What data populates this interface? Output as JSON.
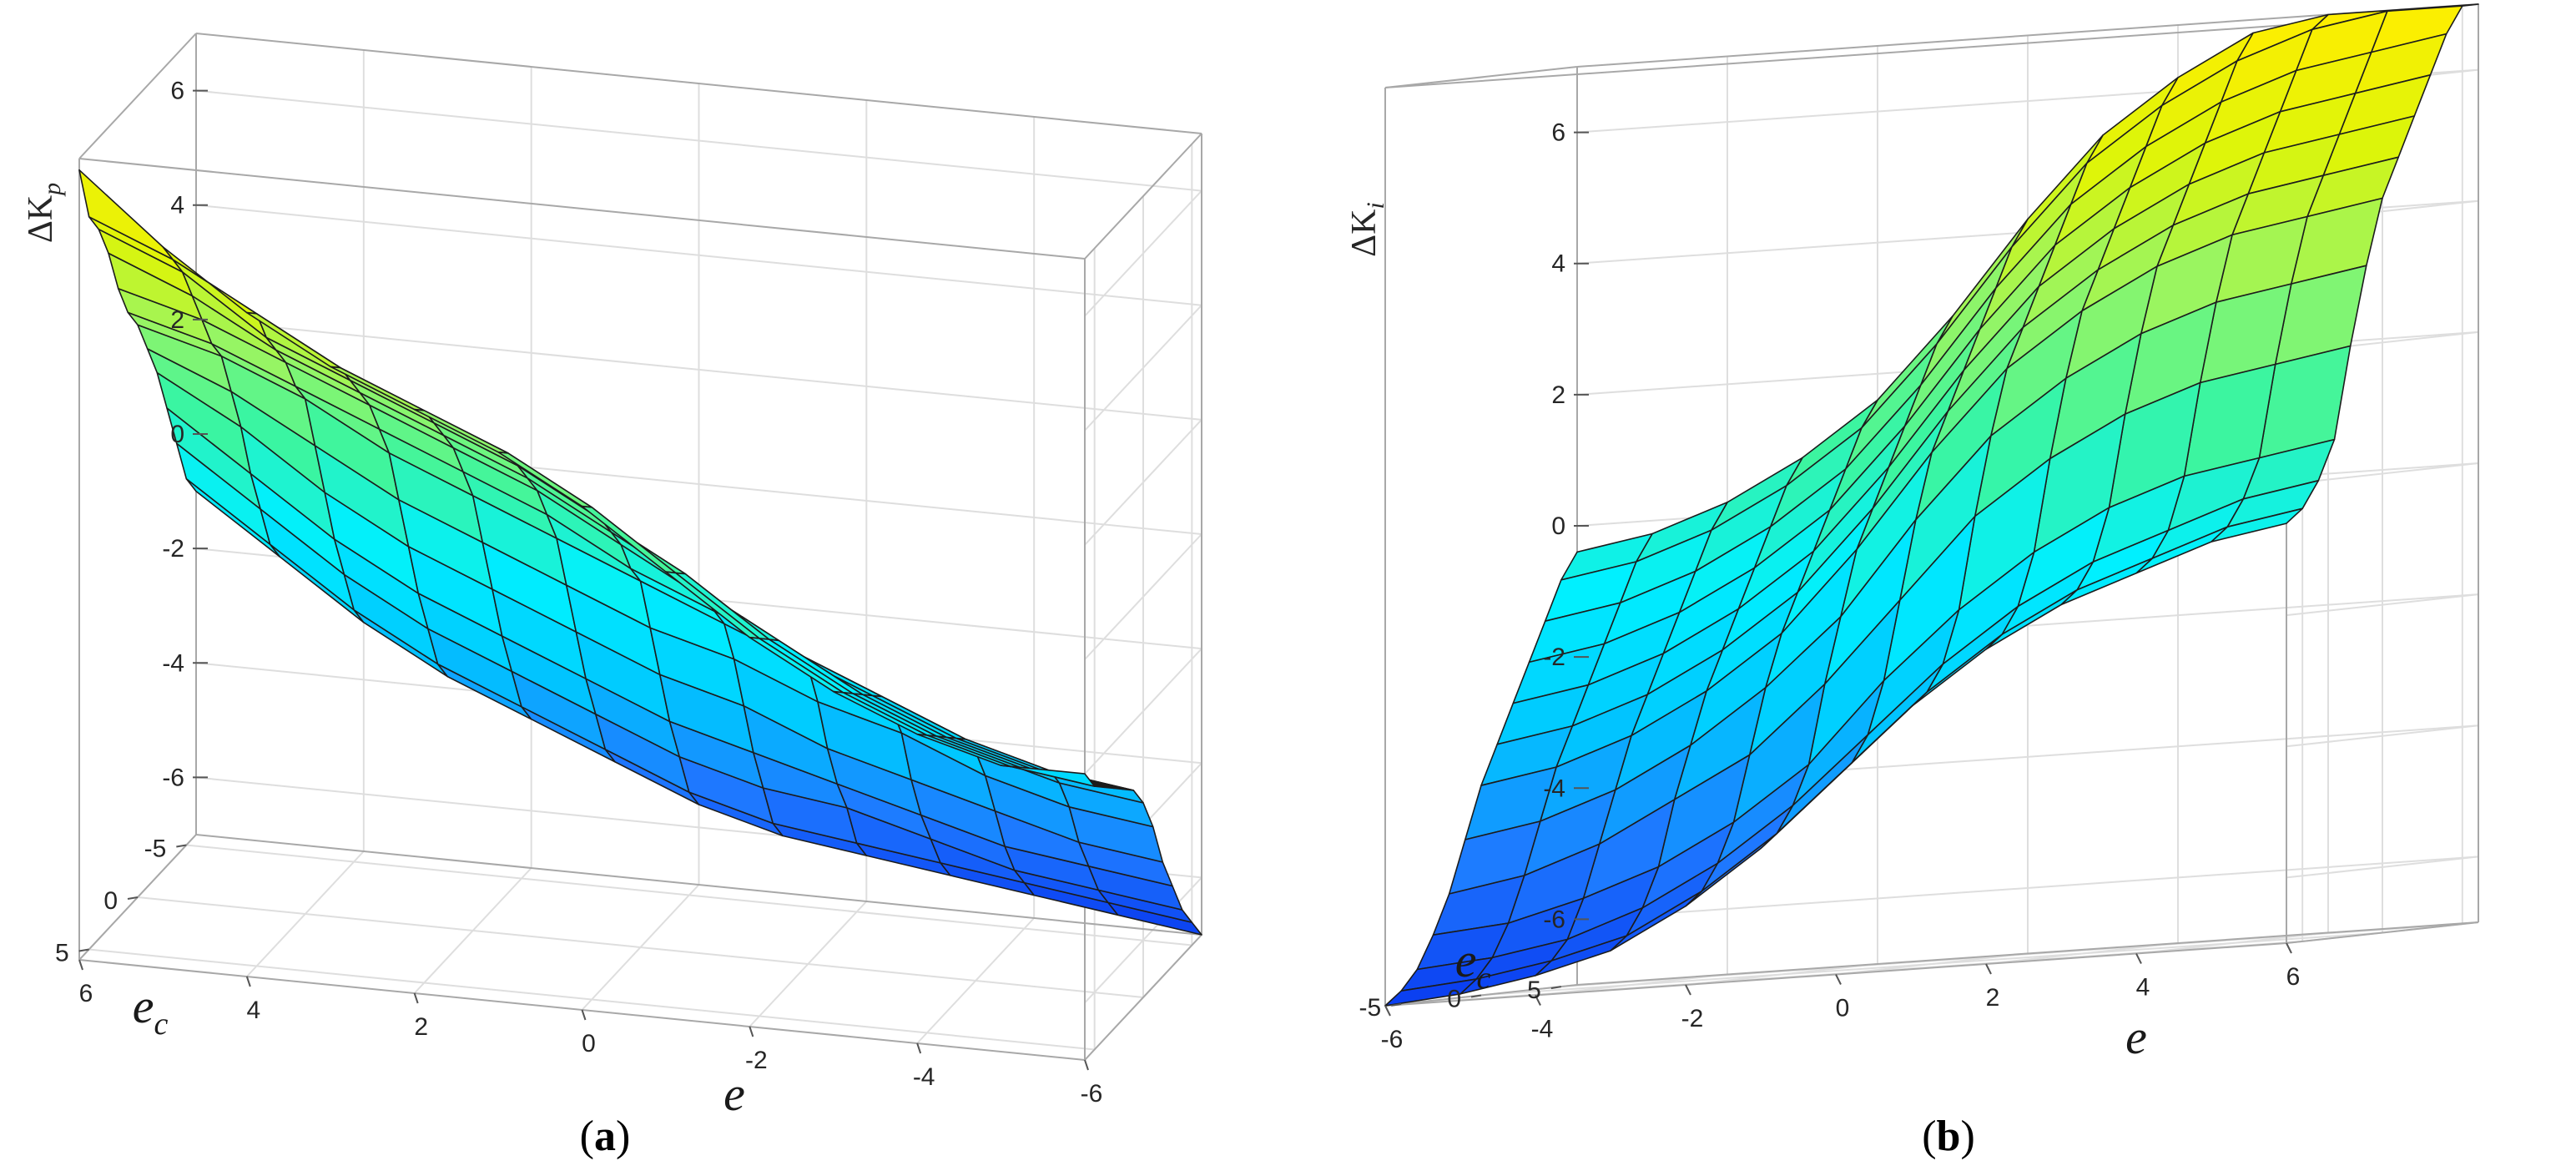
{
  "captions": {
    "a": "a",
    "b": "b"
  },
  "colormap": [
    "#0a3cf0",
    "#1e78ff",
    "#00c8ff",
    "#00f0ff",
    "#3cf5a0",
    "#96f564",
    "#dcf50a",
    "#ffee00"
  ],
  "chart_data": [
    {
      "type": "surface",
      "panel": "a",
      "zlabel": "ΔK_p",
      "xlabel": "e",
      "ylabel": "e_c",
      "zlim": [
        -7,
        7
      ],
      "xlim": [
        -6,
        6
      ],
      "ylim": [
        -6,
        6
      ],
      "grid": true,
      "z_ticks": [
        6,
        4,
        2,
        0,
        -2,
        -4,
        -6
      ],
      "x_ticks": [
        6,
        4,
        2,
        0,
        -2,
        -4,
        -6
      ],
      "y_ticks": [
        -5,
        0,
        5
      ],
      "x": [
        -6,
        -5,
        -4,
        -3,
        -2,
        -1,
        0,
        1,
        2,
        3,
        4,
        5,
        6
      ],
      "y": [
        -6,
        -5,
        -4,
        -3,
        -2,
        -1,
        0,
        1,
        2,
        3,
        4,
        5,
        6
      ],
      "z": [
        [
          -7.0,
          -6.8,
          -6.6,
          -6.4,
          -6.2,
          -6.0,
          -5.6,
          -5.0,
          -4.4,
          -3.8,
          -3.0,
          -2.0,
          -1.0
        ],
        [
          -6.6,
          -6.4,
          -6.2,
          -6.0,
          -5.8,
          -5.6,
          -5.2,
          -4.6,
          -4.0,
          -3.4,
          -2.6,
          -1.6,
          -0.6
        ],
        [
          -6.2,
          -6.0,
          -5.8,
          -5.4,
          -5.0,
          -4.8,
          -4.4,
          -3.8,
          -3.2,
          -2.6,
          -1.8,
          -0.8,
          0.2
        ],
        [
          -5.6,
          -5.4,
          -5.2,
          -4.8,
          -4.4,
          -4.0,
          -3.6,
          -3.0,
          -2.4,
          -1.8,
          -1.0,
          0.0,
          1.0
        ],
        [
          -5.0,
          -4.8,
          -4.4,
          -4.0,
          -3.6,
          -3.0,
          -2.6,
          -2.0,
          -1.4,
          -0.8,
          0.0,
          1.0,
          1.8
        ],
        [
          -4.2,
          -4.0,
          -3.6,
          -3.0,
          -2.6,
          -2.0,
          -1.6,
          -1.0,
          -0.4,
          0.2,
          1.0,
          1.8,
          2.4
        ],
        [
          -3.6,
          -3.4,
          -3.0,
          -2.4,
          -1.8,
          -1.2,
          -0.6,
          0.0,
          0.6,
          1.2,
          2.0,
          2.6,
          3.0
        ],
        [
          -3.2,
          -3.0,
          -2.6,
          -2.0,
          -1.4,
          -0.8,
          -0.2,
          0.6,
          1.2,
          1.8,
          2.4,
          3.0,
          3.4
        ],
        [
          -3.0,
          -2.8,
          -2.4,
          -1.8,
          -1.2,
          -0.4,
          0.4,
          1.2,
          1.8,
          2.4,
          3.0,
          3.6,
          4.0
        ],
        [
          -2.8,
          -2.6,
          -2.2,
          -1.6,
          -0.8,
          0.0,
          0.8,
          1.6,
          2.2,
          2.8,
          3.4,
          4.2,
          4.8
        ],
        [
          -2.6,
          -2.4,
          -2.0,
          -1.4,
          -0.6,
          0.4,
          1.2,
          2.0,
          2.6,
          3.2,
          3.8,
          4.8,
          5.4
        ],
        [
          -2.4,
          -2.2,
          -1.8,
          -1.2,
          -0.4,
          0.6,
          1.6,
          2.4,
          3.0,
          3.6,
          4.4,
          5.2,
          5.8
        ],
        [
          -2.0,
          -2.0,
          -1.6,
          -1.0,
          -0.2,
          0.8,
          1.8,
          2.6,
          3.2,
          3.8,
          4.6,
          5.6,
          6.8
        ]
      ]
    },
    {
      "type": "surface",
      "panel": "b",
      "zlabel": "ΔK_i",
      "xlabel": "e",
      "ylabel": "e_c",
      "zlim": [
        -7,
        7
      ],
      "xlim": [
        -6,
        6
      ],
      "ylim": [
        -6,
        6
      ],
      "grid": true,
      "z_ticks": [
        6,
        4,
        2,
        0,
        -2,
        -4,
        -6
      ],
      "x_ticks": [
        -6,
        -4,
        -2,
        0,
        2,
        4,
        6
      ],
      "y_ticks": [
        5,
        0,
        -5
      ],
      "x": [
        -6,
        -5,
        -4,
        -3,
        -2,
        -1,
        0,
        1,
        2,
        3,
        4,
        5,
        6
      ],
      "y": [
        -6,
        -5,
        -4,
        -3,
        -2,
        -1,
        0,
        1,
        2,
        3,
        4,
        5,
        6
      ],
      "z": [
        [
          -7.0,
          -6.9,
          -6.7,
          -6.4,
          -5.8,
          -5.0,
          -4.0,
          -3.0,
          -2.2,
          -1.6,
          -1.2,
          -0.8,
          -0.6
        ],
        [
          -6.8,
          -6.7,
          -6.5,
          -6.2,
          -5.6,
          -4.8,
          -3.8,
          -2.8,
          -2.0,
          -1.4,
          -1.0,
          -0.6,
          -0.4
        ],
        [
          -6.5,
          -6.4,
          -6.2,
          -5.8,
          -5.2,
          -4.4,
          -3.4,
          -2.4,
          -1.6,
          -1.0,
          -0.6,
          -0.2,
          0.0
        ],
        [
          -6.0,
          -5.9,
          -5.6,
          -5.2,
          -4.6,
          -3.8,
          -2.6,
          -1.6,
          -0.8,
          -0.2,
          0.2,
          0.4,
          0.6
        ],
        [
          -5.4,
          -5.2,
          -4.8,
          -4.2,
          -3.6,
          -2.6,
          -1.4,
          -0.2,
          0.6,
          1.2,
          1.6,
          1.8,
          2.0
        ],
        [
          -4.6,
          -4.4,
          -4.0,
          -3.4,
          -2.6,
          -1.6,
          -0.2,
          1.0,
          1.8,
          2.4,
          2.8,
          3.0,
          3.2
        ],
        [
          -3.8,
          -3.6,
          -3.2,
          -2.6,
          -1.8,
          -0.6,
          0.8,
          2.0,
          2.8,
          3.4,
          3.8,
          4.0,
          4.2
        ],
        [
          -3.2,
          -3.0,
          -2.6,
          -2.0,
          -1.2,
          0.0,
          1.4,
          2.6,
          3.4,
          4.0,
          4.4,
          4.6,
          4.8
        ],
        [
          -2.6,
          -2.4,
          -2.0,
          -1.4,
          -0.6,
          0.6,
          2.0,
          3.2,
          4.0,
          4.6,
          5.0,
          5.2,
          5.4
        ],
        [
          -2.0,
          -1.8,
          -1.4,
          -0.8,
          0.0,
          1.2,
          2.6,
          3.8,
          4.6,
          5.2,
          5.6,
          5.8,
          6.0
        ],
        [
          -1.4,
          -1.2,
          -0.8,
          -0.2,
          0.6,
          1.8,
          3.2,
          4.4,
          5.2,
          5.8,
          6.2,
          6.4,
          6.6
        ],
        [
          -0.8,
          -0.6,
          -0.2,
          0.4,
          1.2,
          2.4,
          3.8,
          5.0,
          5.8,
          6.4,
          6.8,
          7.0,
          7.0
        ],
        [
          -0.4,
          -0.2,
          0.2,
          0.8,
          1.6,
          2.8,
          4.2,
          5.4,
          6.2,
          6.8,
          7.0,
          7.0,
          7.0
        ]
      ]
    }
  ]
}
